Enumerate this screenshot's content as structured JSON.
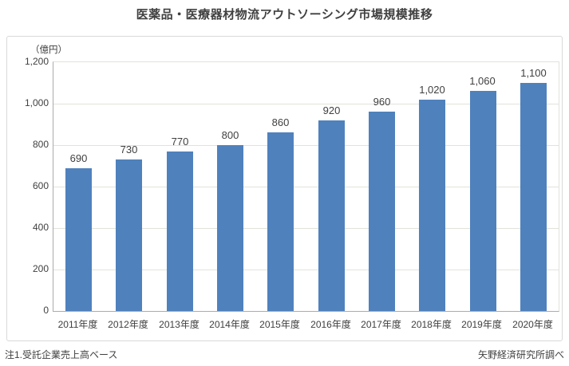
{
  "chart_data": {
    "type": "bar",
    "title": "医薬品・医療器材物流アウトソーシング市場規模推移",
    "unit_label": "（億円）",
    "categories": [
      "2011年度",
      "2012年度",
      "2013年度",
      "2014年度",
      "2015年度",
      "2016年度",
      "2017年度",
      "2018年度",
      "2019年度",
      "2020年度"
    ],
    "values": [
      690,
      730,
      770,
      800,
      860,
      920,
      960,
      1020,
      1060,
      1100
    ],
    "value_labels": [
      "690",
      "730",
      "770",
      "800",
      "860",
      "920",
      "960",
      "1,020",
      "1,060",
      "1,100"
    ],
    "xlabel": "",
    "ylabel": "（億円）",
    "ylim": [
      0,
      1200
    ],
    "ytick_interval": 200,
    "ytick_labels": [
      "0",
      "200",
      "400",
      "600",
      "800",
      "1,000",
      "1,200"
    ],
    "grid": true,
    "legend": "none",
    "bar_color": "#4f81bd",
    "note": "注1.受託企業売上高ベース",
    "source": "矢野経済研究所調べ"
  }
}
